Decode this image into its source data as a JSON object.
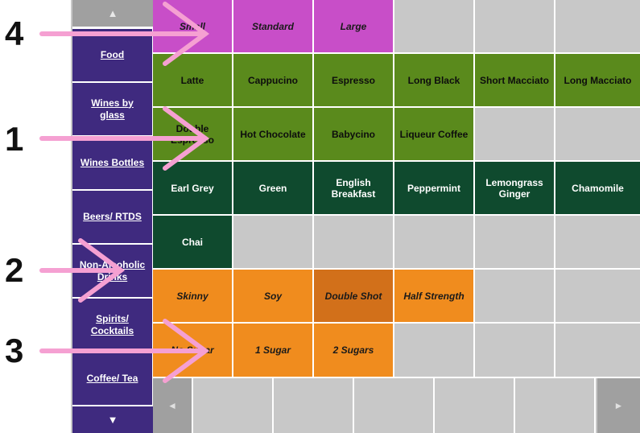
{
  "sidebar": {
    "scroll_up": "▲",
    "scroll_down": "▼",
    "items": [
      {
        "label": "Food"
      },
      {
        "label": "Wines by glass"
      },
      {
        "label": "Wines Bottles"
      },
      {
        "label": "Beers/ RTDS"
      },
      {
        "label": "Non-Alcoholic Drinks"
      },
      {
        "label": "Spirits/ Cocktails"
      },
      {
        "label": "Coffee/ Tea"
      }
    ]
  },
  "grid": {
    "rows": [
      [
        {
          "label": "Small",
          "type": "size"
        },
        {
          "label": "Standard",
          "type": "size"
        },
        {
          "label": "Large",
          "type": "size"
        },
        {
          "label": "",
          "type": "empty"
        },
        {
          "label": "",
          "type": "empty"
        },
        {
          "label": "",
          "type": "empty"
        }
      ],
      [
        {
          "label": "Latte",
          "type": "coffee"
        },
        {
          "label": "Cappucino",
          "type": "coffee"
        },
        {
          "label": "Espresso",
          "type": "coffee"
        },
        {
          "label": "Long Black",
          "type": "coffee"
        },
        {
          "label": "Short Macciato",
          "type": "coffee"
        },
        {
          "label": "Long Macciato",
          "type": "coffee"
        }
      ],
      [
        {
          "label": "Double Espresso",
          "type": "coffee"
        },
        {
          "label": "Hot Chocolate",
          "type": "coffee"
        },
        {
          "label": "Babycino",
          "type": "coffee"
        },
        {
          "label": "Liqueur Coffee",
          "type": "coffee"
        },
        {
          "label": "",
          "type": "empty"
        },
        {
          "label": "",
          "type": "empty"
        }
      ],
      [
        {
          "label": "Earl Grey",
          "type": "tea"
        },
        {
          "label": "Green",
          "type": "tea"
        },
        {
          "label": "English Breakfast",
          "type": "tea"
        },
        {
          "label": "Peppermint",
          "type": "tea"
        },
        {
          "label": "Lemongrass Ginger",
          "type": "tea"
        },
        {
          "label": "Chamomile",
          "type": "tea"
        }
      ],
      [
        {
          "label": "Chai",
          "type": "tea"
        },
        {
          "label": "",
          "type": "empty"
        },
        {
          "label": "",
          "type": "empty"
        },
        {
          "label": "",
          "type": "empty"
        },
        {
          "label": "",
          "type": "empty"
        },
        {
          "label": "",
          "type": "empty"
        }
      ],
      [
        {
          "label": "Skinny",
          "type": "mod"
        },
        {
          "label": "Soy",
          "type": "mod"
        },
        {
          "label": "Double Shot",
          "type": "mod-dark"
        },
        {
          "label": "Half Strength",
          "type": "mod"
        },
        {
          "label": "",
          "type": "empty"
        },
        {
          "label": "",
          "type": "empty"
        }
      ],
      [
        {
          "label": "No Sugar",
          "type": "mod"
        },
        {
          "label": "1 Sugar",
          "type": "mod"
        },
        {
          "label": "2 Sugars",
          "type": "mod"
        },
        {
          "label": "",
          "type": "empty"
        },
        {
          "label": "",
          "type": "empty"
        },
        {
          "label": "",
          "type": "empty"
        }
      ]
    ]
  },
  "bottom_bar": {
    "prev": "◄",
    "next": "►"
  },
  "annotations": [
    {
      "number": "4"
    },
    {
      "number": "1"
    },
    {
      "number": "2"
    },
    {
      "number": "3"
    }
  ],
  "colors": {
    "category": "#3f2a7f",
    "size": "#c84ec8",
    "coffee": "#5a8a1c",
    "tea": "#0f4a2e",
    "modifier": "#f08c1e",
    "modifier_selected": "#d2701a",
    "empty": "#c8c8c8",
    "annotation_arrow": "#f5a0d2"
  }
}
